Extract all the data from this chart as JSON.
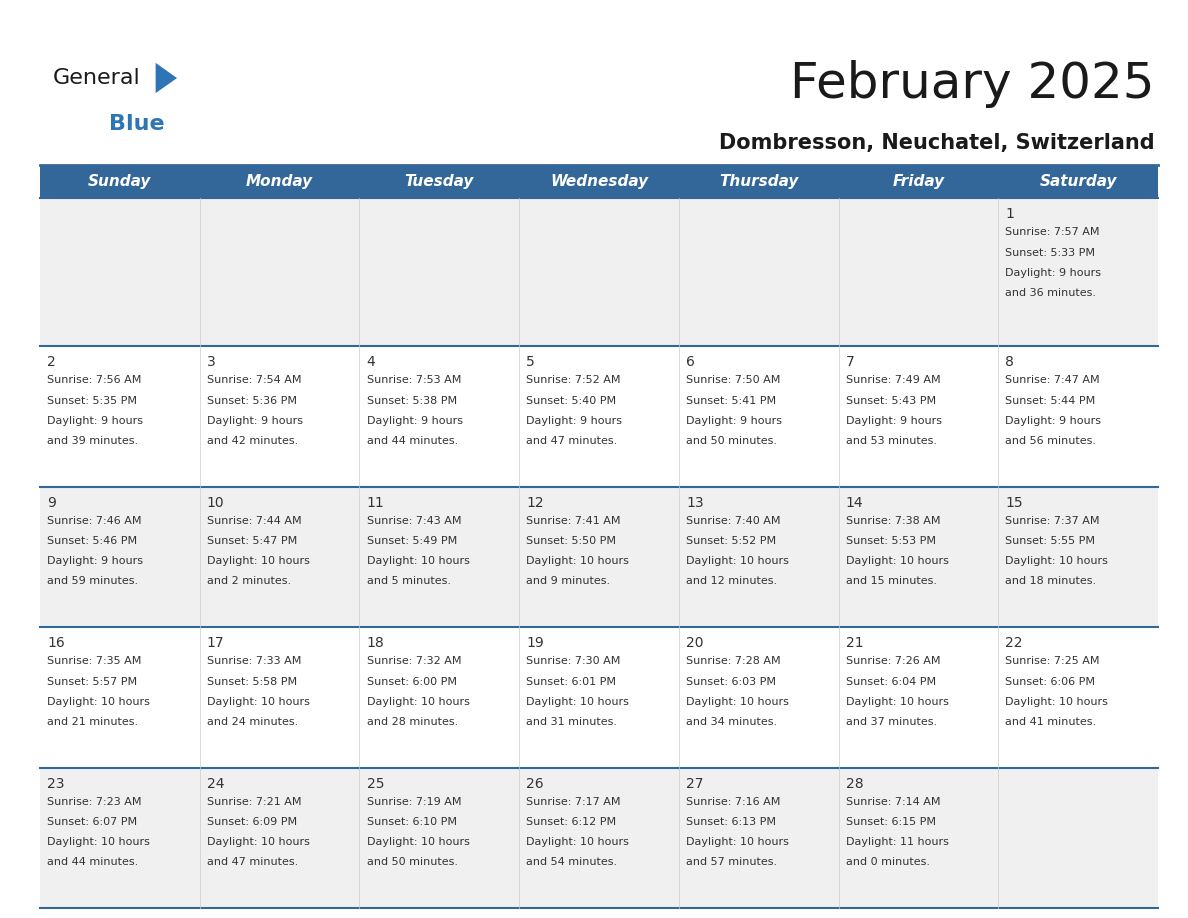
{
  "title": "February 2025",
  "subtitle": "Dombresson, Neuchatel, Switzerland",
  "header_color": "#336699",
  "header_text_color": "#FFFFFF",
  "cell_bg_row0": "#F0F0F0",
  "cell_bg_row1": "#FFFFFF",
  "cell_bg_row2": "#F0F0F0",
  "cell_bg_row3": "#FFFFFF",
  "cell_bg_row4": "#F0F0F0",
  "separator_color": "#336699",
  "text_color": "#333333",
  "day_headers": [
    "Sunday",
    "Monday",
    "Tuesday",
    "Wednesday",
    "Thursday",
    "Friday",
    "Saturday"
  ],
  "days": [
    {
      "day": 1,
      "col": 6,
      "row": 0,
      "sunrise": "7:57 AM",
      "sunset": "5:33 PM",
      "daylight": "9 hours and 36 minutes."
    },
    {
      "day": 2,
      "col": 0,
      "row": 1,
      "sunrise": "7:56 AM",
      "sunset": "5:35 PM",
      "daylight": "9 hours and 39 minutes."
    },
    {
      "day": 3,
      "col": 1,
      "row": 1,
      "sunrise": "7:54 AM",
      "sunset": "5:36 PM",
      "daylight": "9 hours and 42 minutes."
    },
    {
      "day": 4,
      "col": 2,
      "row": 1,
      "sunrise": "7:53 AM",
      "sunset": "5:38 PM",
      "daylight": "9 hours and 44 minutes."
    },
    {
      "day": 5,
      "col": 3,
      "row": 1,
      "sunrise": "7:52 AM",
      "sunset": "5:40 PM",
      "daylight": "9 hours and 47 minutes."
    },
    {
      "day": 6,
      "col": 4,
      "row": 1,
      "sunrise": "7:50 AM",
      "sunset": "5:41 PM",
      "daylight": "9 hours and 50 minutes."
    },
    {
      "day": 7,
      "col": 5,
      "row": 1,
      "sunrise": "7:49 AM",
      "sunset": "5:43 PM",
      "daylight": "9 hours and 53 minutes."
    },
    {
      "day": 8,
      "col": 6,
      "row": 1,
      "sunrise": "7:47 AM",
      "sunset": "5:44 PM",
      "daylight": "9 hours and 56 minutes."
    },
    {
      "day": 9,
      "col": 0,
      "row": 2,
      "sunrise": "7:46 AM",
      "sunset": "5:46 PM",
      "daylight": "9 hours and 59 minutes."
    },
    {
      "day": 10,
      "col": 1,
      "row": 2,
      "sunrise": "7:44 AM",
      "sunset": "5:47 PM",
      "daylight": "10 hours and 2 minutes."
    },
    {
      "day": 11,
      "col": 2,
      "row": 2,
      "sunrise": "7:43 AM",
      "sunset": "5:49 PM",
      "daylight": "10 hours and 5 minutes."
    },
    {
      "day": 12,
      "col": 3,
      "row": 2,
      "sunrise": "7:41 AM",
      "sunset": "5:50 PM",
      "daylight": "10 hours and 9 minutes."
    },
    {
      "day": 13,
      "col": 4,
      "row": 2,
      "sunrise": "7:40 AM",
      "sunset": "5:52 PM",
      "daylight": "10 hours and 12 minutes."
    },
    {
      "day": 14,
      "col": 5,
      "row": 2,
      "sunrise": "7:38 AM",
      "sunset": "5:53 PM",
      "daylight": "10 hours and 15 minutes."
    },
    {
      "day": 15,
      "col": 6,
      "row": 2,
      "sunrise": "7:37 AM",
      "sunset": "5:55 PM",
      "daylight": "10 hours and 18 minutes."
    },
    {
      "day": 16,
      "col": 0,
      "row": 3,
      "sunrise": "7:35 AM",
      "sunset": "5:57 PM",
      "daylight": "10 hours and 21 minutes."
    },
    {
      "day": 17,
      "col": 1,
      "row": 3,
      "sunrise": "7:33 AM",
      "sunset": "5:58 PM",
      "daylight": "10 hours and 24 minutes."
    },
    {
      "day": 18,
      "col": 2,
      "row": 3,
      "sunrise": "7:32 AM",
      "sunset": "6:00 PM",
      "daylight": "10 hours and 28 minutes."
    },
    {
      "day": 19,
      "col": 3,
      "row": 3,
      "sunrise": "7:30 AM",
      "sunset": "6:01 PM",
      "daylight": "10 hours and 31 minutes."
    },
    {
      "day": 20,
      "col": 4,
      "row": 3,
      "sunrise": "7:28 AM",
      "sunset": "6:03 PM",
      "daylight": "10 hours and 34 minutes."
    },
    {
      "day": 21,
      "col": 5,
      "row": 3,
      "sunrise": "7:26 AM",
      "sunset": "6:04 PM",
      "daylight": "10 hours and 37 minutes."
    },
    {
      "day": 22,
      "col": 6,
      "row": 3,
      "sunrise": "7:25 AM",
      "sunset": "6:06 PM",
      "daylight": "10 hours and 41 minutes."
    },
    {
      "day": 23,
      "col": 0,
      "row": 4,
      "sunrise": "7:23 AM",
      "sunset": "6:07 PM",
      "daylight": "10 hours and 44 minutes."
    },
    {
      "day": 24,
      "col": 1,
      "row": 4,
      "sunrise": "7:21 AM",
      "sunset": "6:09 PM",
      "daylight": "10 hours and 47 minutes."
    },
    {
      "day": 25,
      "col": 2,
      "row": 4,
      "sunrise": "7:19 AM",
      "sunset": "6:10 PM",
      "daylight": "10 hours and 50 minutes."
    },
    {
      "day": 26,
      "col": 3,
      "row": 4,
      "sunrise": "7:17 AM",
      "sunset": "6:12 PM",
      "daylight": "10 hours and 54 minutes."
    },
    {
      "day": 27,
      "col": 4,
      "row": 4,
      "sunrise": "7:16 AM",
      "sunset": "6:13 PM",
      "daylight": "10 hours and 57 minutes."
    },
    {
      "day": 28,
      "col": 5,
      "row": 4,
      "sunrise": "7:14 AM",
      "sunset": "6:15 PM",
      "daylight": "11 hours and 0 minutes."
    }
  ],
  "num_rows": 5,
  "logo_color_general": "#1a1a1a",
  "logo_color_blue": "#2E75B6",
  "logo_triangle_color": "#2E75B6",
  "title_fontsize": 36,
  "subtitle_fontsize": 15,
  "header_fontsize": 11,
  "day_num_fontsize": 10,
  "cell_text_fontsize": 8
}
